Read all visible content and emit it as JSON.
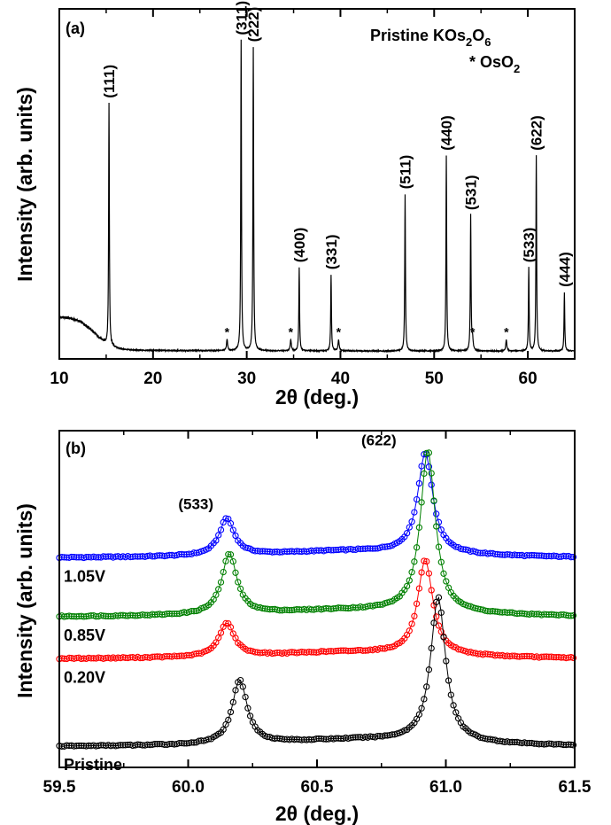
{
  "chart_data": [
    {
      "type": "line",
      "panel_label": "(a)",
      "xlabel": "2θ (deg.)",
      "ylabel": "Intensity (arb. units)",
      "xlim": [
        10,
        65
      ],
      "ylim": [
        0,
        100
      ],
      "xticks": [
        "10",
        "20",
        "30",
        "40",
        "50",
        "60"
      ],
      "xtick_values": [
        10,
        20,
        30,
        40,
        50,
        60
      ],
      "y_ticks_labeled": false,
      "legend": {
        "line1_prefix": "Pristine KOs",
        "line1_sub1": "2",
        "line1_mid": "O",
        "line1_sub2": "6",
        "line2_prefix": "*  OsO",
        "line2_sub": "2"
      },
      "peaks": [
        {
          "x": 15.3,
          "y": 73,
          "label": "(111)"
        },
        {
          "x": 29.4,
          "y": 91,
          "label": "(311)"
        },
        {
          "x": 30.7,
          "y": 89,
          "label": "(222)"
        },
        {
          "x": 35.6,
          "y": 26,
          "label": "(400)"
        },
        {
          "x": 39.0,
          "y": 24,
          "label": "(331)"
        },
        {
          "x": 46.9,
          "y": 47,
          "label": "(511)"
        },
        {
          "x": 51.3,
          "y": 58,
          "label": "(440)"
        },
        {
          "x": 53.9,
          "y": 41,
          "label": "(531)"
        },
        {
          "x": 60.1,
          "y": 26,
          "label": "(533)"
        },
        {
          "x": 60.9,
          "y": 58,
          "label": "(622)"
        },
        {
          "x": 63.9,
          "y": 19,
          "label": "(444)"
        }
      ],
      "impurity_marker": "*",
      "impurity_x": [
        27.9,
        34.7,
        39.8,
        54.1,
        57.7
      ]
    },
    {
      "type": "scatter",
      "panel_label": "(b)",
      "xlabel": "2θ (deg.)",
      "ylabel": "Intensity (arb. units)",
      "xlim": [
        59.5,
        61.5
      ],
      "xticks": [
        "59.5",
        "60.0",
        "60.5",
        "61.0",
        "61.5"
      ],
      "xtick_values": [
        59.5,
        60.0,
        60.5,
        61.0,
        61.5
      ],
      "y_ticks_labeled": false,
      "peak_labels": [
        {
          "x": 60.03,
          "label": "(533)"
        },
        {
          "x": 60.74,
          "label": "(622)"
        }
      ],
      "series": [
        {
          "name": "1.05V",
          "color": "#0000ff",
          "baseline": 62,
          "p533_x": 60.15,
          "p533_h": 11,
          "p622_x": 60.92,
          "p622_h": 30
        },
        {
          "name": "0.85V",
          "color": "#008000",
          "baseline": 44.5,
          "p533_x": 60.16,
          "p533_h": 18,
          "p622_x": 60.93,
          "p622_h": 48
        },
        {
          "name": "0.20V",
          "color": "#ff0000",
          "baseline": 32,
          "p533_x": 60.15,
          "p533_h": 10,
          "p622_x": 60.92,
          "p622_h": 28
        },
        {
          "name": "Pristine",
          "color": "#000000",
          "baseline": 6,
          "p533_x": 60.2,
          "p533_h": 19,
          "p622_x": 60.97,
          "p622_h": 43
        }
      ]
    }
  ]
}
